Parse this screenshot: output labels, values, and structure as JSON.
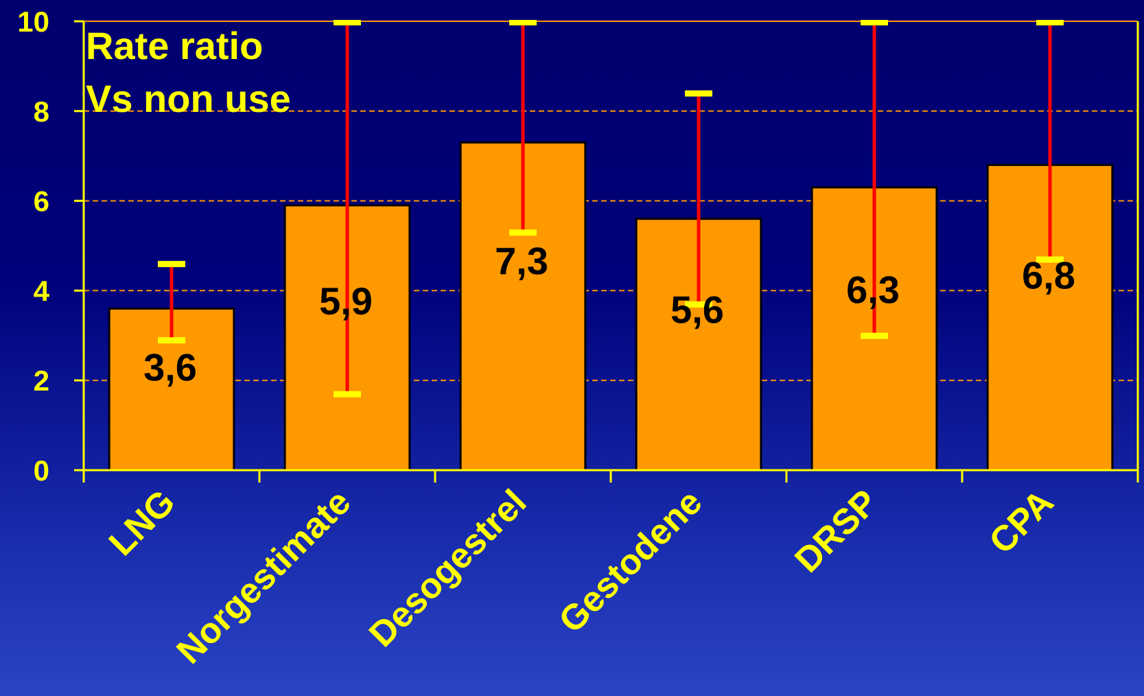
{
  "colors": {
    "bar": "#FF9900",
    "bar_border": "#000000",
    "axis": "#FFFF00",
    "grid": "#FF9900",
    "error_line": "#FF0000",
    "error_cap": "#FFFF00",
    "text_light": "#FFFF00",
    "text_value": "#000000"
  },
  "chart_data": {
    "type": "bar",
    "title": "Rate ratio",
    "subtitle": "Vs non use",
    "categories": [
      "LNG",
      "Norgestimate",
      "Desogestrel",
      "Gestodene",
      "DRSP",
      "CPA"
    ],
    "values": [
      3.6,
      5.9,
      7.3,
      5.6,
      6.3,
      6.8
    ],
    "value_labels": [
      "3,6",
      "5,9",
      "7,3",
      "5,6",
      "6,3",
      "6,8"
    ],
    "ci_lower": [
      2.9,
      1.7,
      5.3,
      3.7,
      3.0,
      4.7
    ],
    "ci_upper": [
      4.6,
      10,
      10,
      8.4,
      10,
      10
    ],
    "ylim": [
      0,
      10
    ],
    "yticks": [
      0,
      2,
      4,
      6,
      8,
      10
    ],
    "grid": true,
    "xlabel": "",
    "ylabel": ""
  }
}
